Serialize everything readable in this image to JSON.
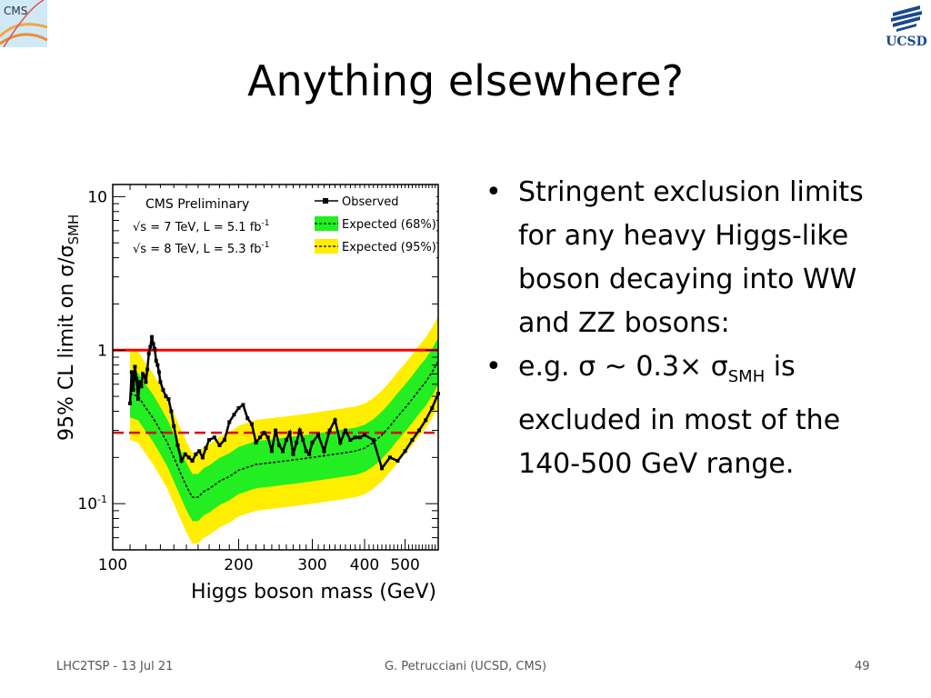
{
  "slide": {
    "title": "Anything elsewhere?",
    "bullets": [
      {
        "text": "Stringent exclusion limits for any heavy Higgs-like boson decaying into WW and ZZ bosons:"
      },
      {
        "pre": "e.g.  σ ~ 0.3× σ",
        "sub": "SMH",
        "post": " is excluded in most of the 140-500 GeV range."
      }
    ],
    "logo_left_text": "CMS",
    "logo_right_text": "UCSD"
  },
  "footer": {
    "left": "LHC2TSP - 13 Jul 21",
    "center": "G. Petrucciani (UCSD, CMS)",
    "right": "49"
  },
  "colors": {
    "band68": "#22ee22",
    "band95": "#ffee00",
    "observed": "#000000",
    "expected": "#000000",
    "sm_line": "#ff0000",
    "dashed_line": "#dd0000"
  },
  "chart_data": {
    "type": "line",
    "title": "",
    "xlabel": "Higgs boson mass (GeV)",
    "ylabel_main": "95% CL limit on σ/σ",
    "ylabel_sub": "SMH",
    "xscale": "log",
    "yscale": "log",
    "xlim": [
      100,
      600
    ],
    "ylim": [
      0.05,
      12
    ],
    "xticks": [
      {
        "value": 100,
        "label": "100"
      },
      {
        "value": 200,
        "label": "200"
      },
      {
        "value": 300,
        "label": "300"
      },
      {
        "value": 400,
        "label": "400"
      },
      {
        "value": 500,
        "label": "500"
      }
    ],
    "yticks": [
      {
        "value": 10,
        "label": "10"
      },
      {
        "value": 1,
        "label": "1"
      },
      {
        "value": 0.1,
        "label": "10",
        "sup": "-1"
      }
    ],
    "annotations": {
      "header": "CMS Preliminary",
      "line1_pre": "√s = 7 TeV, L = 5.1 fb",
      "line1_sup": "-1",
      "line2_pre": "√s = 8 TeV, L = 5.3 fb",
      "line2_sup": "-1"
    },
    "legend": {
      "placement": "top-right",
      "entries": [
        "Observed",
        "Expected (68%)",
        "Expected (95%)"
      ]
    },
    "reference_lines": [
      {
        "y": 1,
        "style": "solid"
      },
      {
        "y": 0.29,
        "style": "dashed"
      }
    ],
    "series": [
      {
        "name": "Observed",
        "x": [
          110,
          111,
          112,
          113,
          114,
          115,
          116,
          117,
          118,
          119,
          120,
          121,
          122,
          123,
          124,
          125,
          126,
          127,
          128,
          129,
          130,
          132,
          134,
          136,
          138,
          140,
          143,
          146,
          149,
          152,
          155,
          158,
          161,
          164,
          167,
          170,
          175,
          180,
          185,
          190,
          195,
          200,
          205,
          210,
          215,
          220,
          225,
          230,
          235,
          240,
          245,
          250,
          255,
          260,
          265,
          270,
          275,
          280,
          285,
          290,
          295,
          300,
          310,
          320,
          330,
          340,
          350,
          360,
          370,
          380,
          390,
          400,
          420,
          440,
          460,
          480,
          500,
          520,
          540,
          560,
          580,
          600
        ],
        "y": [
          0.45,
          0.72,
          0.55,
          0.78,
          0.65,
          0.48,
          0.62,
          0.58,
          0.7,
          0.68,
          0.62,
          0.75,
          0.95,
          1.05,
          1.22,
          1.1,
          1.02,
          0.85,
          0.8,
          0.72,
          0.62,
          0.55,
          0.5,
          0.48,
          0.4,
          0.32,
          0.24,
          0.19,
          0.21,
          0.2,
          0.19,
          0.21,
          0.22,
          0.2,
          0.23,
          0.26,
          0.27,
          0.24,
          0.26,
          0.34,
          0.38,
          0.42,
          0.44,
          0.36,
          0.33,
          0.25,
          0.27,
          0.29,
          0.27,
          0.22,
          0.3,
          0.24,
          0.22,
          0.26,
          0.29,
          0.21,
          0.25,
          0.3,
          0.26,
          0.22,
          0.21,
          0.25,
          0.28,
          0.22,
          0.3,
          0.35,
          0.25,
          0.3,
          0.26,
          0.27,
          0.27,
          0.28,
          0.26,
          0.17,
          0.2,
          0.19,
          0.22,
          0.26,
          0.3,
          0.35,
          0.42,
          0.52
        ]
      },
      {
        "name": "Expected",
        "x": [
          110,
          115,
          120,
          125,
          130,
          135,
          140,
          145,
          150,
          155,
          160,
          165,
          170,
          180,
          190,
          200,
          220,
          240,
          260,
          280,
          300,
          320,
          340,
          360,
          380,
          400,
          420,
          440,
          460,
          480,
          500,
          520,
          540,
          560,
          580,
          600
        ],
        "y": [
          0.52,
          0.5,
          0.42,
          0.36,
          0.3,
          0.25,
          0.2,
          0.16,
          0.13,
          0.11,
          0.11,
          0.12,
          0.125,
          0.14,
          0.15,
          0.165,
          0.18,
          0.185,
          0.19,
          0.195,
          0.2,
          0.205,
          0.21,
          0.215,
          0.22,
          0.23,
          0.25,
          0.28,
          0.32,
          0.37,
          0.42,
          0.48,
          0.55,
          0.62,
          0.72,
          0.85
        ]
      }
    ]
  }
}
